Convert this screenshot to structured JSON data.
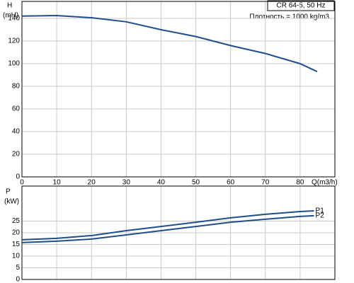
{
  "chart_data": [
    {
      "type": "line",
      "ylabel": "H",
      "yunit": "(mH)",
      "xlabel": "Q(m3/h)",
      "legend_title": "CR 64-5, 50 Hz",
      "annotation": "Плотность = 1000 kg/m3",
      "x": [
        0,
        10,
        20,
        30,
        40,
        50,
        60,
        70,
        80,
        84.9
      ],
      "series": [
        {
          "name": "H",
          "color": "#1f4e8c",
          "values": [
            142,
            142.5,
            140.6,
            137,
            130,
            124,
            116,
            109,
            100,
            93
          ]
        }
      ],
      "xlim": [
        0,
        90
      ],
      "xticks": [
        0,
        10,
        20,
        30,
        40,
        50,
        60,
        70,
        80
      ],
      "ylim": [
        0,
        155
      ],
      "yticks": [
        0,
        20,
        40,
        60,
        80,
        100,
        120,
        140
      ],
      "grid": true
    },
    {
      "type": "line",
      "ylabel": "P",
      "yunit": "(kW)",
      "x": [
        0,
        10,
        20,
        30,
        40,
        50,
        60,
        70,
        80,
        84
      ],
      "series": [
        {
          "name": "P1",
          "color": "#1f4e8c",
          "values": [
            17,
            17.6,
            18.8,
            20.9,
            22.7,
            24.5,
            26.4,
            27.9,
            29.1,
            29.4
          ]
        },
        {
          "name": "P2",
          "color": "#1f4e8c",
          "values": [
            15.8,
            16.4,
            17.3,
            19.1,
            20.9,
            22.7,
            24.5,
            25.8,
            27,
            27.3
          ]
        }
      ],
      "xlim": [
        0,
        90
      ],
      "ylim": [
        0,
        40
      ],
      "yticks": [
        0,
        5,
        10,
        15,
        20,
        25
      ],
      "grid": true
    }
  ]
}
